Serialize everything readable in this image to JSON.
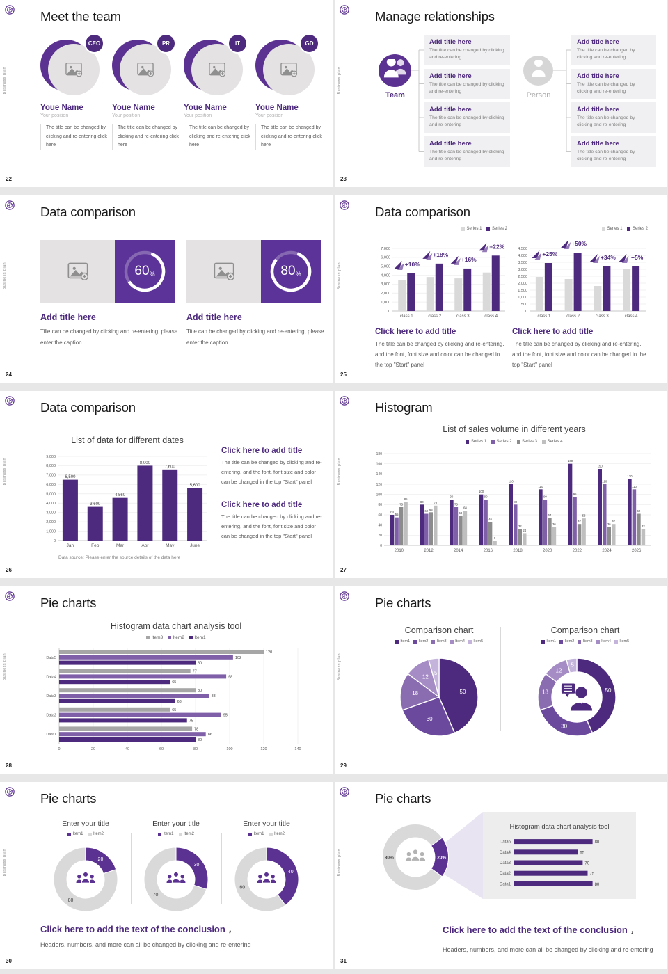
{
  "theme": {
    "purple_dark": "#4d2a7d",
    "purple": "#5b3191",
    "purple_mid": "#7e5fa8",
    "gray_bar": "#d9d9d9",
    "panel_bg": "#f0eff1"
  },
  "common": {
    "vertical_label": "Business plan"
  },
  "slides": {
    "s22": {
      "title": "Meet the team",
      "page": "22",
      "members": [
        {
          "badge": "CEO",
          "name": "Youe Name",
          "position": "Your position",
          "desc": "The title can be changed by clicking and re-entering click here"
        },
        {
          "badge": "PR",
          "name": "Youe Name",
          "position": "Your position",
          "desc": "The title can be changed by clicking and re-entering click here"
        },
        {
          "badge": "IT",
          "name": "Youe Name",
          "position": "Your position",
          "desc": "The title can be changed by clicking and re-entering click here"
        },
        {
          "badge": "GD",
          "name": "Youe Name",
          "position": "Your position",
          "desc": "The title can be changed by clicking and re-entering click here"
        }
      ]
    },
    "s23": {
      "title": "Manage relationships",
      "page": "23",
      "team_label": "Team",
      "person_label": "Person",
      "box": {
        "title": "Add title here",
        "body": "The title can be changed by clicking and re-entering"
      }
    },
    "s24": {
      "title": "Data comparison",
      "page": "24",
      "panels": [
        {
          "percent": 60,
          "percent_text": "60",
          "unit": "%",
          "heading": "Add title here",
          "caption": "Tille can be changed by clicking and re-entering, please enter the caption"
        },
        {
          "percent": 80,
          "percent_text": "80",
          "unit": "%",
          "heading": "Add title here",
          "caption": "Title can be changed by clicking and re-entering, please enter the caption"
        }
      ]
    },
    "s25": {
      "title": "Data comparison",
      "page": "25",
      "block_heading": "Click here to add title",
      "block_body": "The title can be changed by clicking and re-entering, and the font, font size and color can be changed in the top \"Start\" panel",
      "charts": [
        {
          "type": "bar",
          "legend": [
            {
              "label": "Series 1",
              "color": "#d9d9d9"
            },
            {
              "label": "Series 2",
              "color": "#4d2a7d"
            }
          ],
          "categories": [
            "class 1",
            "class 2",
            "class 3",
            "class 4"
          ],
          "series": [
            {
              "name": "Series 1",
              "color": "#d9d9d9",
              "values": [
                3500,
                3800,
                3650,
                4300
              ]
            },
            {
              "name": "Series 2",
              "color": "#4d2a7d",
              "values": [
                4200,
                5300,
                4750,
                6200
              ]
            }
          ],
          "growth_labels": [
            "+10%",
            "+18%",
            "+16%",
            "+22%"
          ],
          "ylim": [
            0,
            7000
          ],
          "ystep": 1000
        },
        {
          "type": "bar",
          "legend": [
            {
              "label": "Series 1",
              "color": "#d9d9d9"
            },
            {
              "label": "Series 2",
              "color": "#4d2a7d"
            }
          ],
          "categories": [
            "class 1",
            "class 2",
            "class 3",
            "class 4"
          ],
          "series": [
            {
              "name": "Series 1",
              "color": "#d9d9d9",
              "values": [
                2450,
                2300,
                1800,
                3000
              ]
            },
            {
              "name": "Series 2",
              "color": "#4d2a7d",
              "values": [
                3450,
                4200,
                3200,
                3200
              ]
            }
          ],
          "growth_labels": [
            "+25%",
            "+50%",
            "+34%",
            "+5%"
          ],
          "ylim": [
            0,
            4500
          ],
          "ystep": 500
        }
      ]
    },
    "s26": {
      "title": "Data comparison",
      "page": "26",
      "chart": {
        "type": "bar",
        "title": "List of data for different dates",
        "categories": [
          "Jan",
          "Feb",
          "Mar",
          "Apr",
          "May",
          "June"
        ],
        "values": [
          6500,
          3600,
          4560,
          8000,
          7600,
          5600
        ],
        "labels": [
          "6,500",
          "3,600",
          "4,560",
          "8,000",
          "7,600",
          "5,600"
        ],
        "color": "#4d2a7d",
        "ylim": [
          0,
          9000
        ],
        "ystep": 1000,
        "source_note": "Data source: Please enter the source details of the data here"
      },
      "blocks": [
        {
          "heading": "Click here to add title",
          "body": "The title can be changed by clicking and re-entering, and the font, font size and color can be changed in the top \"Start\" panel"
        },
        {
          "heading": "Click here to add title",
          "body": "The title can be changed by clicking and re-entering, and the font, font size and color can be changed in the top \"Start\" panel"
        }
      ]
    },
    "s27": {
      "title": "Histogram",
      "page": "27",
      "chart": {
        "type": "bar",
        "title": "List of sales volume in different years",
        "legend": [
          {
            "label": "Series 1",
            "color": "#4d2a7d"
          },
          {
            "label": "Series 2",
            "color": "#7e5fa8"
          },
          {
            "label": "Series 3",
            "color": "#8c8c8c"
          },
          {
            "label": "Series 4",
            "color": "#bfbfbf"
          }
        ],
        "categories": [
          "2010",
          "2012",
          "2014",
          "2016",
          "2018",
          "2020",
          "2022",
          "2024",
          "2026"
        ],
        "series": [
          {
            "name": "Series 1",
            "color": "#4d2a7d",
            "values": [
              60,
              80,
              90,
              100,
              120,
              110,
              160,
              150,
              130
            ]
          },
          {
            "name": "Series 2",
            "color": "#7e5fa8",
            "values": [
              55,
              62,
              75,
              90,
              80,
              90,
              95,
              120,
              110
            ]
          },
          {
            "name": "Series 3",
            "color": "#8c8c8c",
            "values": [
              75,
              65,
              58,
              46,
              32,
              54,
              42,
              36,
              62
            ]
          },
          {
            "name": "Series 4",
            "color": "#bfbfbf",
            "values": [
              85,
              78,
              68,
              9,
              24,
              36,
              53,
              42,
              32
            ]
          }
        ],
        "ylim": [
          0,
          180
        ],
        "ystep": 20
      }
    },
    "s28": {
      "title": "Pie charts",
      "page": "28",
      "chart": {
        "type": "bar-horizontal",
        "title": "Histogram data chart analysis tool",
        "legend": [
          {
            "label": "Item3",
            "color": "#a6a6a6"
          },
          {
            "label": "Item2",
            "color": "#7e5fa8"
          },
          {
            "label": "Item1",
            "color": "#4d2a7d"
          }
        ],
        "categories": [
          "Data5",
          "Data4",
          "Data3",
          "Data2",
          "Data1"
        ],
        "series": [
          {
            "name": "Item3",
            "color": "#a6a6a6",
            "values": [
              120,
              77,
              80,
              65,
              78
            ]
          },
          {
            "name": "Item2",
            "color": "#7e5fa8",
            "values": [
              102,
              98,
              88,
              95,
              86
            ]
          },
          {
            "name": "Item1",
            "color": "#4d2a7d",
            "values": [
              80,
              65,
              68,
              75,
              80
            ]
          }
        ],
        "xlim": [
          0,
          140
        ],
        "xstep": 20
      }
    },
    "s29": {
      "title": "Pie charts",
      "page": "29",
      "left": {
        "header": "Comparison chart",
        "legend": [
          {
            "label": "Item1",
            "color": "#4d2a7d"
          },
          {
            "label": "Item2",
            "color": "#6b4a9e"
          },
          {
            "label": "Item3",
            "color": "#8a6cb0"
          },
          {
            "label": "Item4",
            "color": "#a58cc5"
          },
          {
            "label": "Item5",
            "color": "#c4b3da"
          }
        ],
        "chart": {
          "type": "pie",
          "values": [
            50,
            30,
            18,
            12,
            5
          ],
          "labels": [
            "50",
            "30",
            "18",
            "12",
            "5"
          ],
          "colors": [
            "#4d2a7d",
            "#6b4a9e",
            "#8a6cb0",
            "#a58cc5",
            "#c4b3da"
          ]
        }
      },
      "right": {
        "header": "Comparison chart",
        "legend": [
          {
            "label": "Item1",
            "color": "#4d2a7d"
          },
          {
            "label": "Item2",
            "color": "#6b4a9e"
          },
          {
            "label": "Item3",
            "color": "#8a6cb0"
          },
          {
            "label": "Item4",
            "color": "#a58cc5"
          },
          {
            "label": "Item5",
            "color": "#c4b3da"
          }
        ],
        "chart": {
          "type": "donut",
          "values": [
            50,
            30,
            18,
            12,
            5
          ],
          "labels": [
            "50",
            "30",
            "18",
            "12",
            "5"
          ],
          "colors": [
            "#4d2a7d",
            "#6b4a9e",
            "#8a6cb0",
            "#a58cc5",
            "#c4b3da"
          ]
        }
      }
    },
    "s30": {
      "title": "Pie charts",
      "page": "30",
      "charts": [
        {
          "title": "Enter your title",
          "legend": [
            {
              "label": "Item1",
              "color": "#5b3191"
            },
            {
              "label": "Item2",
              "color": "#d9d9d9"
            }
          ],
          "chart": {
            "type": "donut",
            "values": [
              20,
              80
            ],
            "labels": [
              "20",
              "80"
            ],
            "colors": [
              "#5b3191",
              "#d9d9d9"
            ],
            "label_colors": [
              "#ffffff",
              "#404040"
            ]
          }
        },
        {
          "title": "Enter your title",
          "legend": [
            {
              "label": "Item1",
              "color": "#5b3191"
            },
            {
              "label": "Item2",
              "color": "#d9d9d9"
            }
          ],
          "chart": {
            "type": "donut",
            "values": [
              30,
              70
            ],
            "labels": [
              "30",
              "70"
            ],
            "colors": [
              "#5b3191",
              "#d9d9d9"
            ],
            "label_colors": [
              "#ffffff",
              "#404040"
            ]
          }
        },
        {
          "title": "Enter your title",
          "legend": [
            {
              "label": "Item1",
              "color": "#5b3191"
            },
            {
              "label": "Item2",
              "color": "#d9d9d9"
            }
          ],
          "chart": {
            "type": "donut",
            "values": [
              40,
              60
            ],
            "labels": [
              "40",
              "60"
            ],
            "colors": [
              "#5b3191",
              "#d9d9d9"
            ],
            "label_colors": [
              "#ffffff",
              "#404040"
            ]
          }
        }
      ],
      "conclusion_heading": "Click here to add the text of the conclusion",
      "conclusion_comma": "，",
      "conclusion_body": "Headers, numbers, and more can all be changed by clicking and re-entering"
    },
    "s31": {
      "title": "Pie charts",
      "page": "31",
      "donut": {
        "type": "donut",
        "values": [
          20,
          80
        ],
        "labels": [
          "20%",
          "80%"
        ],
        "colors": [
          "#5b3191",
          "#d9d9d9"
        ],
        "label_colors": [
          "#ffffff",
          "#404040"
        ],
        "start_angle": 54
      },
      "panel": {
        "title": "Histogram data chart analysis tool",
        "chart": {
          "type": "bar-horizontal",
          "categories": [
            "Data5",
            "Data4",
            "Data3",
            "Data2",
            "Data1"
          ],
          "color": "#4d2a7d",
          "values": [
            80,
            65,
            70,
            75,
            80
          ],
          "xlim": [
            0,
            100
          ]
        }
      },
      "conclusion_heading": "Click here to add the text of the conclusion",
      "conclusion_comma": "，",
      "conclusion_body": "Headers, numbers, and more can all be changed by clicking and re-entering"
    }
  }
}
